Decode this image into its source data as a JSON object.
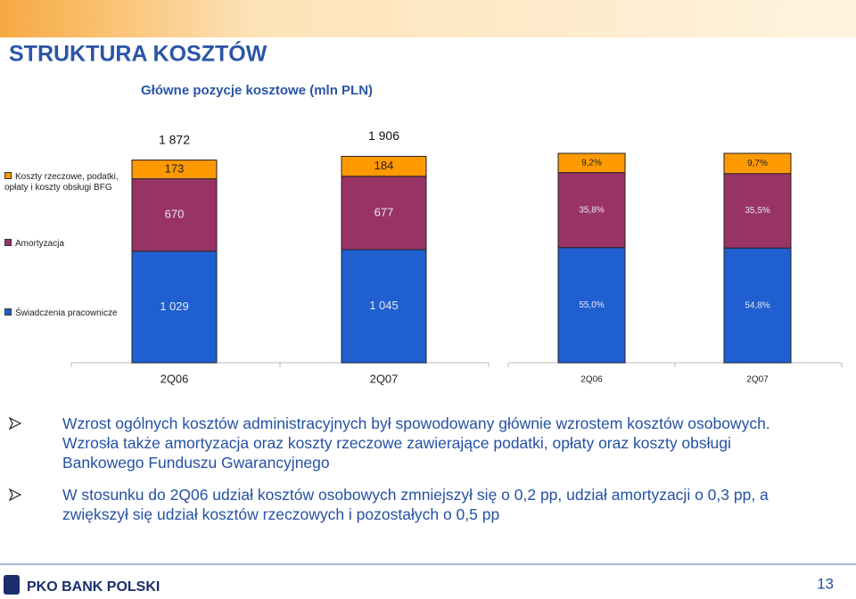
{
  "title": "STRUKTURA KOSZTÓW",
  "chart_data": [
    {
      "type": "bar",
      "stacked": true,
      "title": "Główne pozycje kosztowe (mln PLN)",
      "categories": [
        "2Q06",
        "2Q07"
      ],
      "series": [
        {
          "name": "Świadczenia pracownicze",
          "color": "#1f5fd0",
          "values": [
            1029,
            1045
          ],
          "value_labels": [
            "1 029",
            "1 045"
          ]
        },
        {
          "name": "Amortyzacja",
          "color": "#993366",
          "values": [
            670,
            677
          ]
        },
        {
          "name": "Koszty rzeczowe, podatki, opłaty i koszty obsługi BFG",
          "color": "#ff9900",
          "values": [
            173,
            184
          ]
        }
      ],
      "totals": [
        1872,
        1906
      ],
      "total_labels": [
        "1 872",
        "1 906"
      ]
    },
    {
      "type": "bar",
      "stacked": true,
      "categories": [
        "2Q06",
        "2Q07"
      ],
      "series": [
        {
          "color": "#1f5fd0",
          "values": [
            55.0,
            54.8
          ],
          "value_labels": [
            "55,0%",
            "54,8%"
          ]
        },
        {
          "color": "#993366",
          "values": [
            35.8,
            35.5
          ],
          "value_labels": [
            "35,8%",
            "35,5%"
          ]
        },
        {
          "color": "#ff9900",
          "values": [
            9.2,
            9.7
          ],
          "value_labels": [
            "9,2%",
            "9,7%"
          ]
        }
      ]
    }
  ],
  "bullets": [
    "Wzrost ogólnych kosztów administracyjnych był spowodowany głównie wzrostem kosztów osobowych. Wzrosła także amortyzacja oraz koszty rzeczowe zawierające podatki, opłaty oraz koszty obsługi Bankowego Funduszu Gwarancyjnego",
    "W stosunku do 2Q06 udział kosztów osobowych zmniejszył się o 0,2 pp, udział amortyzacji o 0,3 pp, a zwiększył się udział kosztów rzeczowych i pozostałych o 0,5 pp"
  ],
  "footer": {
    "logo": "PKO BANK POLSKI",
    "page": "13"
  }
}
